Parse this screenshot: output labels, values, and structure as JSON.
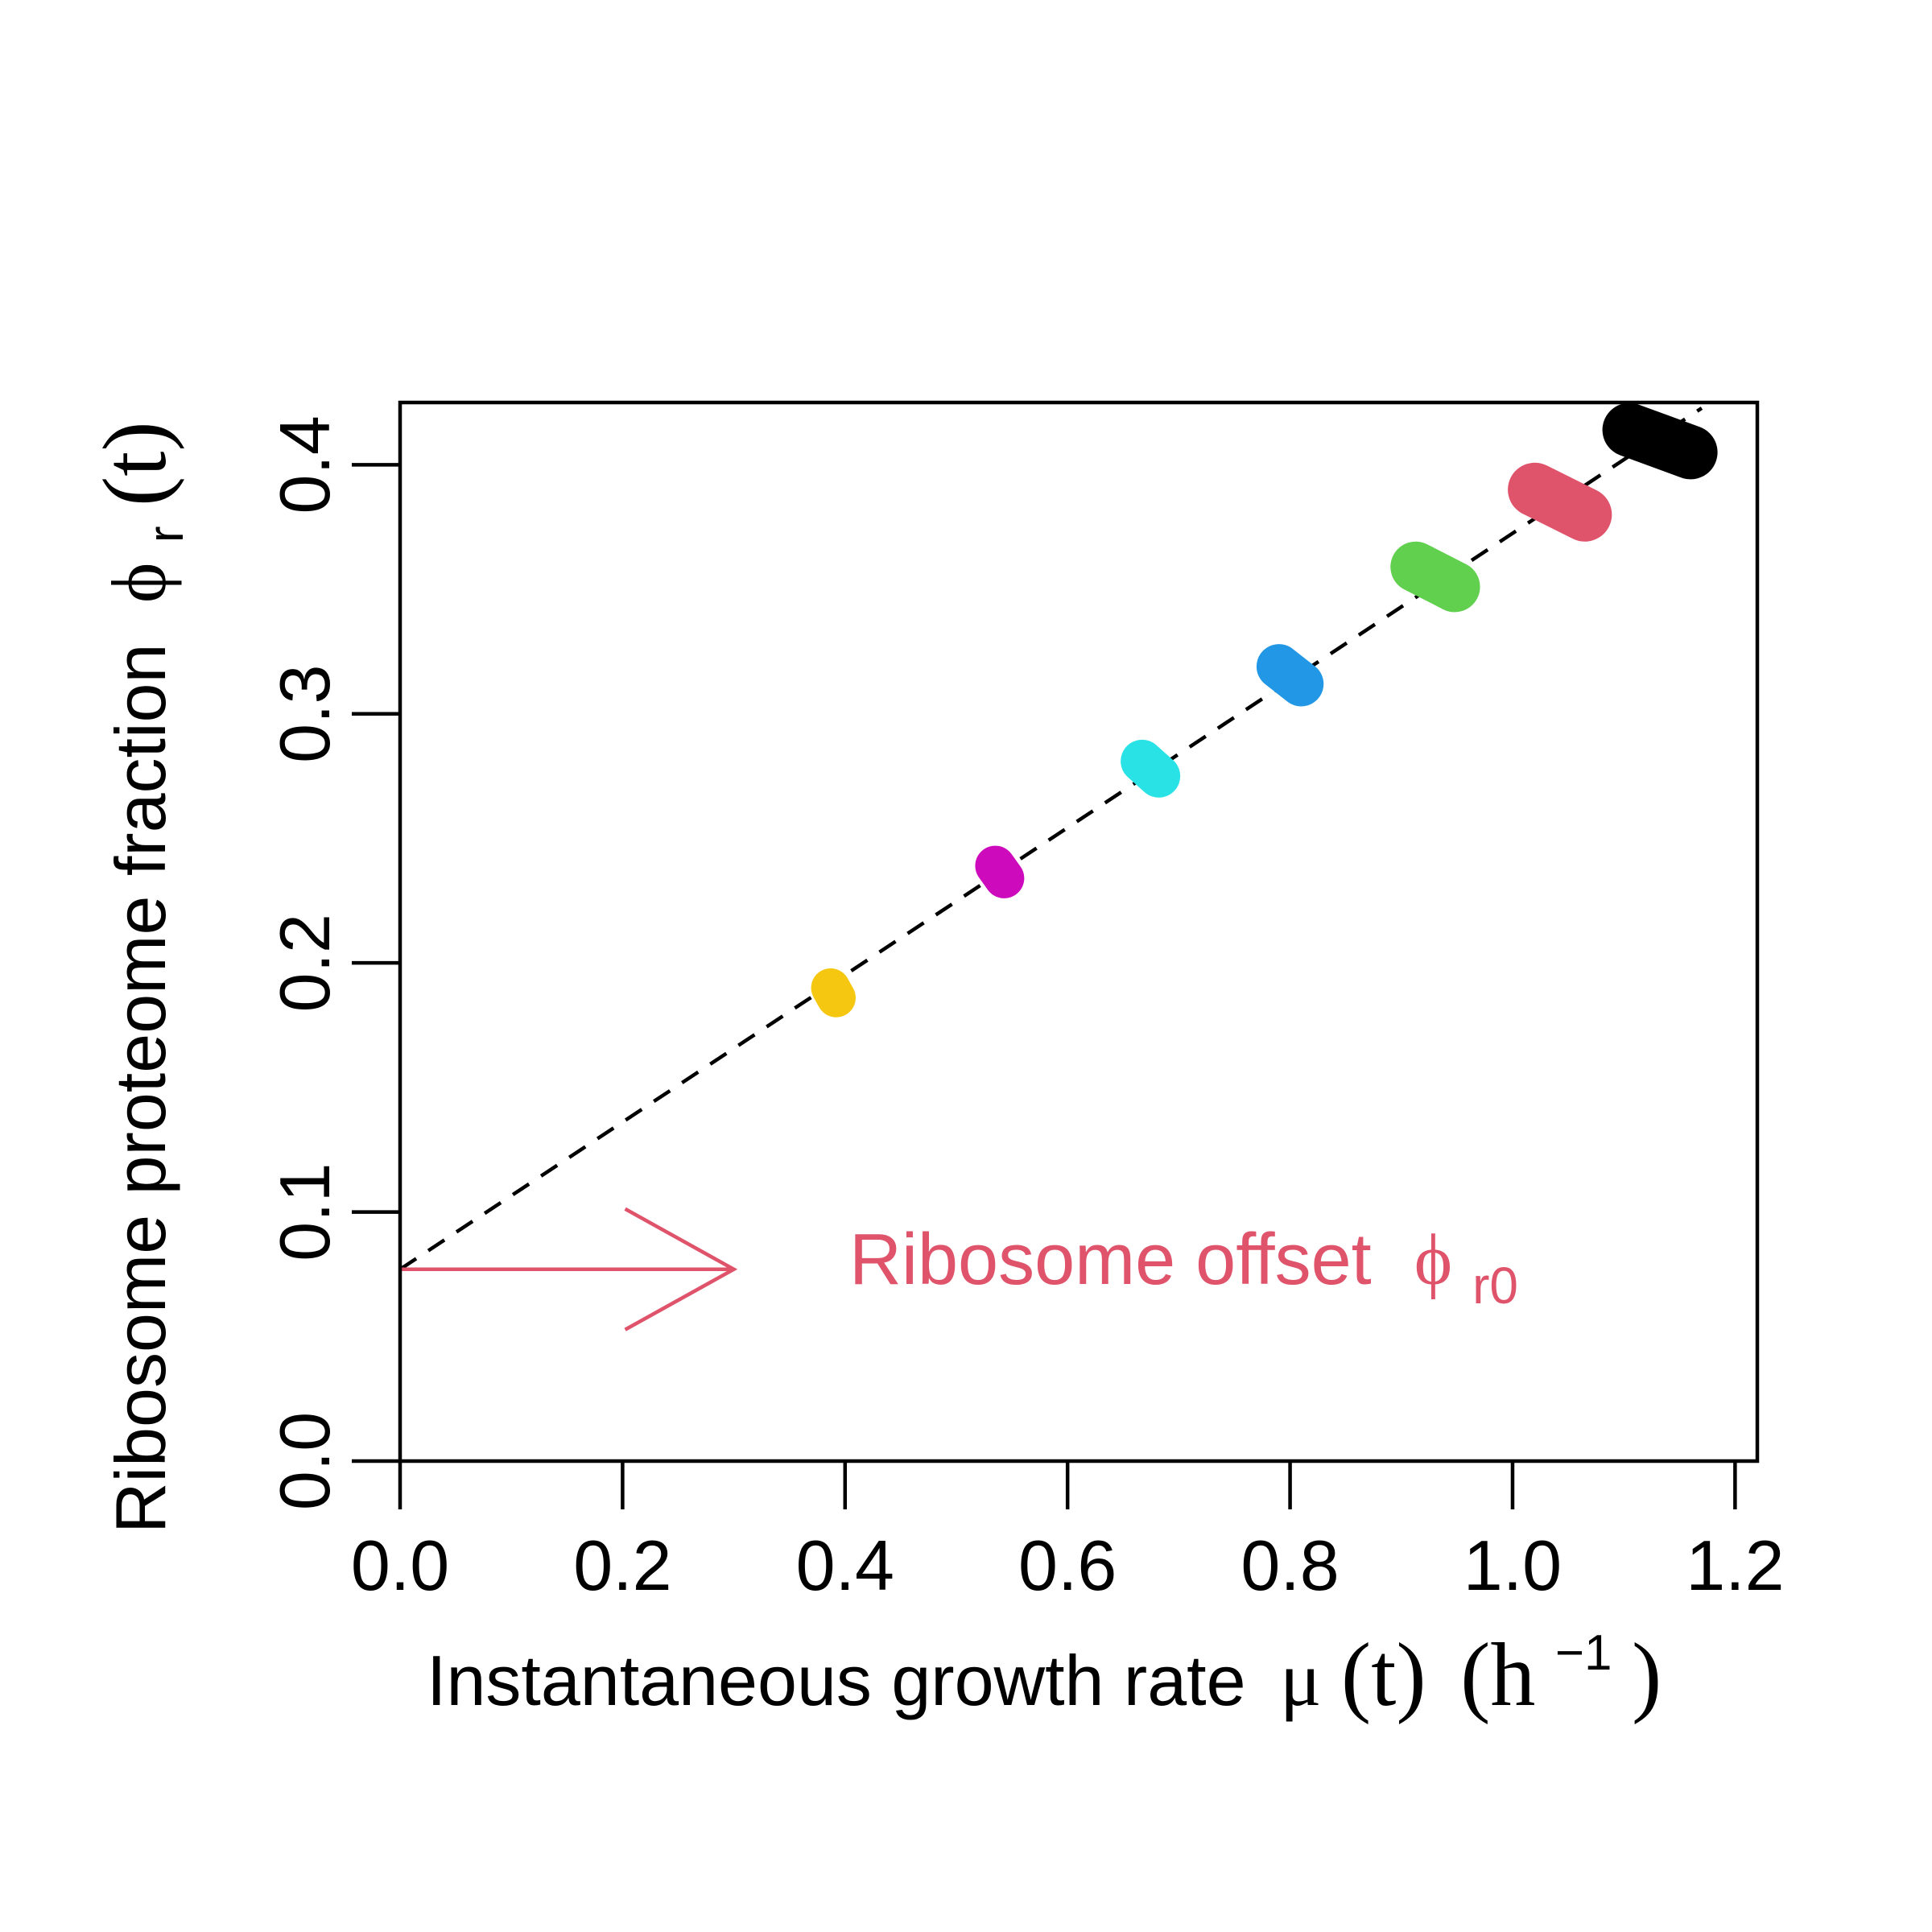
{
  "chart_data": {
    "type": "scatter",
    "xlabel": {
      "text": "Instantaneous growth rate",
      "symbol": "μ",
      "arg": "(t)",
      "unit_open": "(h",
      "unit_sup": "−1",
      "unit_close": ")"
    },
    "ylabel": {
      "text": "Ribosome proteome fraction",
      "symbol": "ϕ",
      "sub": "r",
      "arg": "(t)"
    },
    "xlim": [
      0.0,
      1.22
    ],
    "ylim": [
      0.0,
      0.425
    ],
    "x_ticks": [
      "0.0",
      "0.2",
      "0.4",
      "0.6",
      "0.8",
      "1.0",
      "1.2"
    ],
    "y_ticks": [
      "0.0",
      "0.1",
      "0.2",
      "0.3",
      "0.4"
    ],
    "grid": false,
    "fit_line": {
      "style": "dashed",
      "color": "#000000",
      "intercept": 0.077,
      "slope": 0.2955
    },
    "clusters": [
      {
        "x_range": [
          0.387,
          0.392
        ],
        "y_range": [
          0.186,
          0.19
        ],
        "color": "#F5C710"
      },
      {
        "x_range": [
          0.535,
          0.543
        ],
        "y_range": [
          0.234,
          0.239
        ],
        "color": "#CD0BBC"
      },
      {
        "x_range": [
          0.667,
          0.682
        ],
        "y_range": [
          0.275,
          0.281
        ],
        "color": "#28E2E5"
      },
      {
        "x_range": [
          0.79,
          0.81
        ],
        "y_range": [
          0.312,
          0.319
        ],
        "color": "#2297E6"
      },
      {
        "x_range": [
          0.913,
          0.948
        ],
        "y_range": [
          0.351,
          0.359
        ],
        "color": "#61D04F"
      },
      {
        "x_range": [
          1.02,
          1.065
        ],
        "y_range": [
          0.38,
          0.39
        ],
        "color": "#DF536B"
      },
      {
        "x_range": [
          1.105,
          1.16
        ],
        "y_range": [
          0.405,
          0.414
        ],
        "color": "#000000"
      }
    ],
    "annotation": {
      "text": "Ribosome offset",
      "symbol": "ϕ",
      "sub": "r0",
      "color": "#DF536B",
      "arrow_from": [
        0.0,
        0.077
      ],
      "arrow_to": [
        0.3,
        0.077
      ]
    }
  }
}
